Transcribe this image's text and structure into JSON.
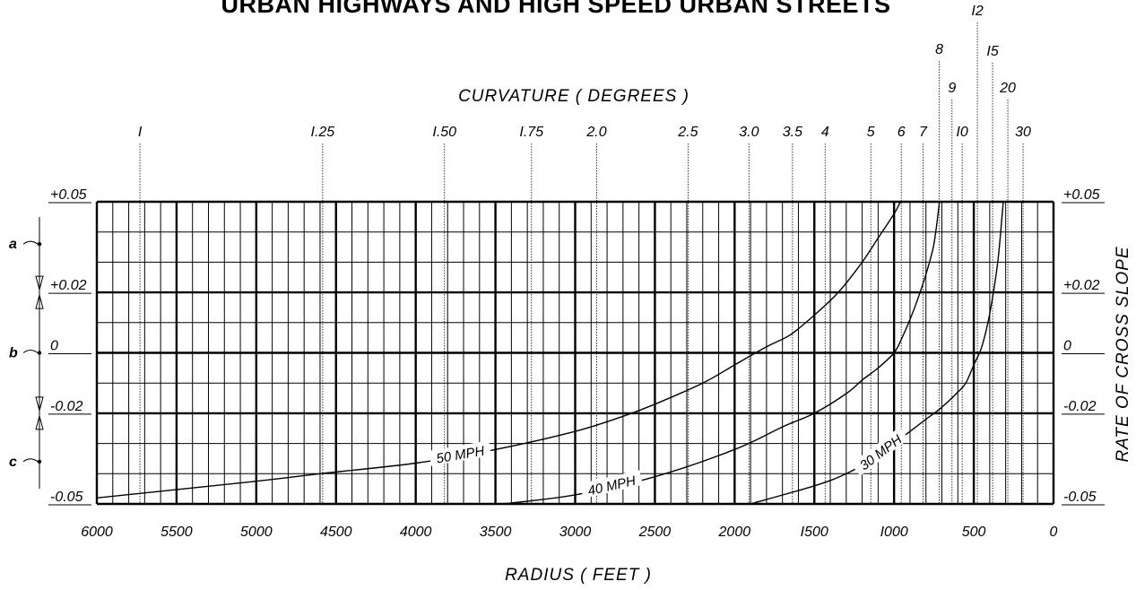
{
  "chart_data": {
    "type": "line",
    "title": "URBAN HIGHWAYS AND HIGH SPEED URBAN STREETS",
    "xlabel": "RADIUS ( FEET )",
    "ylabel": "RATE OF CROSS SLOPE",
    "top_axis_label": "CURVATURE ( DEGREES )",
    "xlim": [
      6000,
      0
    ],
    "ylim": [
      -0.05,
      0.05
    ],
    "x_ticks": [
      "6000",
      "5500",
      "5000",
      "4500",
      "4000",
      "3500",
      "3000",
      "2500",
      "2000",
      "I500",
      "I000",
      "500",
      "0"
    ],
    "y_ticks": [
      "+0.05",
      "+0.02",
      "0",
      "-0.02",
      "-0.05"
    ],
    "y_tick_values": [
      0.05,
      0.02,
      0,
      -0.02,
      -0.05
    ],
    "top_ticks": [
      {
        "label": "I",
        "deg": 1
      },
      {
        "label": "I.25",
        "deg": 1.25
      },
      {
        "label": "I.50",
        "deg": 1.5
      },
      {
        "label": "I.75",
        "deg": 1.75
      },
      {
        "label": "2.0",
        "deg": 2
      },
      {
        "label": "2.5",
        "deg": 2.5
      },
      {
        "label": "3.0",
        "deg": 3
      },
      {
        "label": "3.5",
        "deg": 3.5
      },
      {
        "label": "4",
        "deg": 4
      },
      {
        "label": "5",
        "deg": 5
      },
      {
        "label": "6",
        "deg": 6
      },
      {
        "label": "7",
        "deg": 7
      },
      {
        "label": "8",
        "deg": 8
      },
      {
        "label": "9",
        "deg": 9
      },
      {
        "label": "I0",
        "deg": 10
      },
      {
        "label": "I2",
        "deg": 12
      },
      {
        "label": "I5",
        "deg": 15
      },
      {
        "label": "20",
        "deg": 20
      },
      {
        "label": "30",
        "deg": 30
      }
    ],
    "series": [
      {
        "name": "50 MPH",
        "x": [
          6000,
          5000,
          4600,
          4000,
          3500,
          3000,
          2700,
          2500,
          2200,
          2000,
          1800,
          1650,
          1500,
          1350,
          1200,
          1100,
          1000,
          960
        ],
        "y": [
          -0.048,
          -0.0425,
          -0.04,
          -0.0365,
          -0.032,
          -0.026,
          -0.021,
          -0.017,
          -0.01,
          -0.004,
          0.002,
          0.006,
          0.0125,
          0.02,
          0.03,
          0.038,
          0.046,
          0.05
        ]
      },
      {
        "name": "40 MPH",
        "x": [
          3450,
          3000,
          2500,
          2000,
          1700,
          1500,
          1300,
          1200,
          1100,
          1000,
          950,
          900,
          850,
          800,
          750,
          715
        ],
        "y": [
          -0.05,
          -0.047,
          -0.041,
          -0.032,
          -0.0245,
          -0.02,
          -0.0135,
          -0.009,
          -0.005,
          0.0,
          0.005,
          0.011,
          0.018,
          0.026,
          0.036,
          0.05
        ]
      },
      {
        "name": "30 MPH",
        "x": [
          1900,
          1500,
          1300,
          1100,
          1000,
          800,
          700,
          600,
          550,
          500,
          450,
          400,
          350,
          315
        ],
        "y": [
          -0.05,
          -0.044,
          -0.04,
          -0.034,
          -0.03,
          -0.022,
          -0.018,
          -0.013,
          -0.01,
          -0.004,
          0.002,
          0.013,
          0.03,
          0.05
        ]
      }
    ],
    "grid": true,
    "markers": [
      {
        "label": "a",
        "y": 0.036
      },
      {
        "label": "b",
        "y": 0.0
      },
      {
        "label": "c",
        "y": -0.036
      }
    ]
  }
}
